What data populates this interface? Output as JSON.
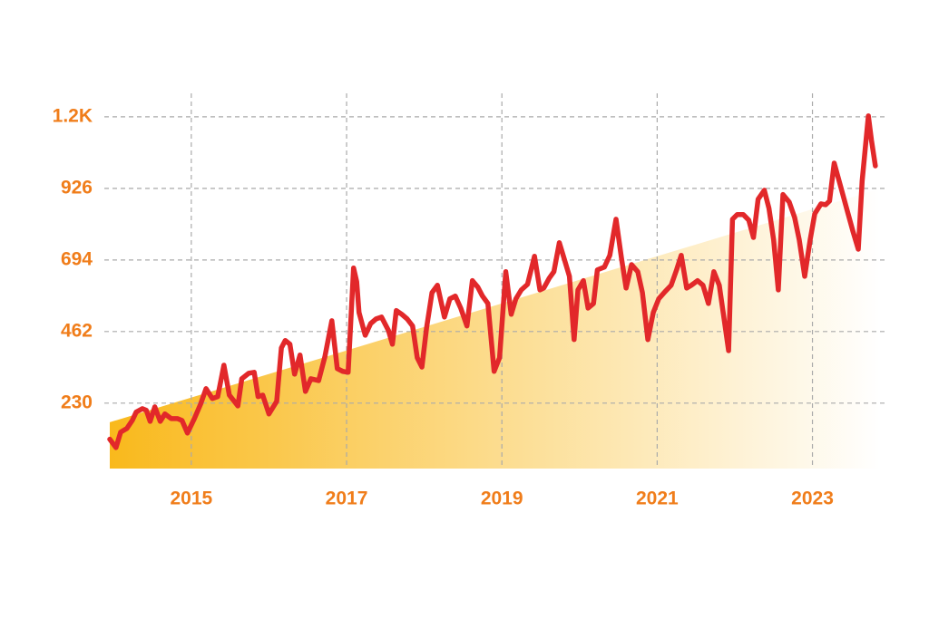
{
  "chart_data": {
    "type": "line",
    "xlim": [
      2013.95,
      2023.87
    ],
    "xticks": [
      2015,
      2017,
      2019,
      2021,
      2023
    ],
    "ylim": [
      18,
      1234
    ],
    "yticks": [
      230,
      462,
      694,
      926,
      {
        "value": 1158,
        "label": "1.2K"
      }
    ],
    "grid": true,
    "series": [
      {
        "type": "area",
        "color": "#f9b91c",
        "x": [
          2013.95,
          2023.87
        ],
        "values": [
          168,
          925
        ]
      },
      {
        "type": "line",
        "color": "#e2282a",
        "x": [
          2013.95,
          2014.03,
          2014.09,
          2014.17,
          2014.24,
          2014.29,
          2014.37,
          2014.42,
          2014.47,
          2014.53,
          2014.6,
          2014.66,
          2014.74,
          2014.82,
          2014.88,
          2014.95,
          2015.04,
          2015.12,
          2015.19,
          2015.27,
          2015.34,
          2015.42,
          2015.49,
          2015.6,
          2015.65,
          2015.74,
          2015.81,
          2015.86,
          2015.92,
          2016.0,
          2016.1,
          2016.16,
          2016.21,
          2016.27,
          2016.33,
          2016.4,
          2016.47,
          2016.54,
          2016.64,
          2016.72,
          2016.81,
          2016.88,
          2016.95,
          2017.02,
          2017.09,
          2017.13,
          2017.16,
          2017.24,
          2017.31,
          2017.38,
          2017.45,
          2017.54,
          2017.59,
          2017.64,
          2017.71,
          2017.78,
          2017.85,
          2017.91,
          2017.97,
          2018.03,
          2018.1,
          2018.17,
          2018.26,
          2018.33,
          2018.4,
          2018.47,
          2018.55,
          2018.62,
          2018.69,
          2018.75,
          2018.82,
          2018.9,
          2018.97,
          2019.05,
          2019.12,
          2019.18,
          2019.25,
          2019.33,
          2019.42,
          2019.49,
          2019.54,
          2019.61,
          2019.67,
          2019.74,
          2019.8,
          2019.87,
          2019.93,
          2019.98,
          2020.05,
          2020.11,
          2020.18,
          2020.23,
          2020.32,
          2020.39,
          2020.47,
          2020.54,
          2020.6,
          2020.67,
          2020.75,
          2020.81,
          2020.88,
          2020.95,
          2021.02,
          2021.1,
          2021.18,
          2021.25,
          2021.31,
          2021.38,
          2021.44,
          2021.52,
          2021.59,
          2021.66,
          2021.73,
          2021.8,
          2021.85,
          2021.92,
          2021.97,
          2022.03,
          2022.11,
          2022.18,
          2022.24,
          2022.3,
          2022.38,
          2022.44,
          2022.5,
          2022.56,
          2022.62,
          2022.7,
          2022.77,
          2022.83,
          2022.9,
          2022.97,
          2023.03,
          2023.11,
          2023.17,
          2023.22,
          2023.28,
          2023.36,
          2023.44,
          2023.52,
          2023.59,
          2023.64,
          2023.72,
          2023.76,
          2023.81
        ],
        "values": [
          113,
          86,
          136,
          148,
          174,
          201,
          212,
          207,
          171,
          218,
          171,
          195,
          180,
          180,
          174,
          133,
          180,
          227,
          277,
          245,
          251,
          353,
          256,
          221,
          309,
          327,
          330,
          251,
          256,
          195,
          236,
          409,
          433,
          421,
          324,
          386,
          268,
          309,
          303,
          380,
          497,
          342,
          333,
          330,
          668,
          624,
          524,
          450,
          488,
          503,
          509,
          465,
          421,
          530,
          518,
          503,
          480,
          377,
          347,
          474,
          588,
          612,
          509,
          568,
          577,
          538,
          480,
          627,
          606,
          577,
          553,
          333,
          377,
          656,
          518,
          568,
          597,
          615,
          706,
          597,
          603,
          635,
          656,
          750,
          700,
          641,
          436,
          597,
          627,
          538,
          553,
          662,
          671,
          709,
          826,
          700,
          603,
          679,
          656,
          588,
          436,
          524,
          568,
          591,
          612,
          662,
          709,
          603,
          612,
          627,
          612,
          553,
          656,
          612,
          524,
          400,
          826,
          841,
          841,
          823,
          767,
          891,
          920,
          861,
          759,
          597,
          906,
          882,
          832,
          759,
          641,
          759,
          844,
          876,
          873,
          885,
          1008,
          935,
          861,
          788,
          729,
          950,
          1161,
          1082,
          999
        ]
      }
    ]
  }
}
